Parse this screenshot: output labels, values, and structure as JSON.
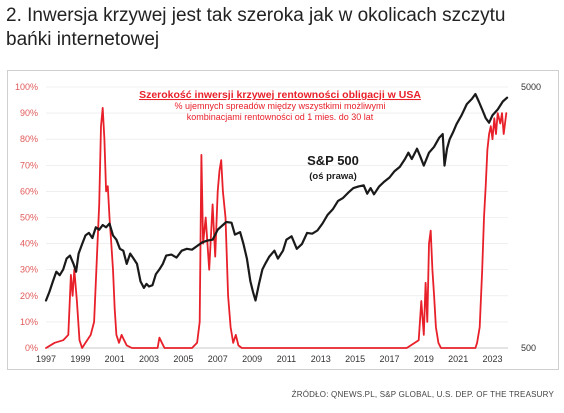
{
  "header": {
    "title_line1": "2. Inwersja krzywej jest tak szeroka jak w okolicach szczytu",
    "title_line2": "bańki internetowej"
  },
  "source": "ŹRÓDŁO: QNEWS.PL, S&P GLOBAL, U.S. DEP. OF THE TREASURY",
  "colors": {
    "red": "#e8202a",
    "black": "#1a1a1a",
    "left_ticks": "#e05a5a",
    "grid": "#e6e6e6"
  },
  "chart_data": {
    "type": "line",
    "title": "Szerokość inwersji krzywej rentowności obligacji w USA",
    "subtitle_line1": "% ujemnych spreadów między wszystkimi możliwymi",
    "subtitle_line2": "kombinacjami rentowności od 1 mies. do 30 lat",
    "annotation_title": "S&P 500",
    "annotation_sub": "(oś prawa)",
    "x_ticks": [
      "1997",
      "1999",
      "2001",
      "2003",
      "2005",
      "2007",
      "2009",
      "2011",
      "2013",
      "2015",
      "2017",
      "2019",
      "2021",
      "2023"
    ],
    "x_range": [
      1997,
      2023.9
    ],
    "y_left_ticks": [
      "0%",
      "10%",
      "20%",
      "30%",
      "40%",
      "50%",
      "60%",
      "70%",
      "80%",
      "90%",
      "100%"
    ],
    "y_left_range": [
      0,
      100
    ],
    "y_right_ticks": [
      "500",
      "5000"
    ],
    "y_right_range": [
      500,
      5000
    ],
    "y_right_scale": "log",
    "series": [
      {
        "color": "#e8202a",
        "axis": "left",
        "x": [
          1997.0,
          1997.5,
          1998.0,
          1998.3,
          1998.45,
          1998.55,
          1998.65,
          1998.8,
          1998.95,
          1999.1,
          1999.3,
          1999.6,
          1999.8,
          2000.0,
          2000.1,
          2000.2,
          2000.3,
          2000.4,
          2000.5,
          2000.6,
          2000.7,
          2000.8,
          2000.9,
          2001.0,
          2001.1,
          2001.25,
          2001.4,
          2001.55,
          2001.7,
          2002.0,
          2003.0,
          2003.5,
          2003.6,
          2003.75,
          2003.9,
          2004.5,
          2005.0,
          2005.5,
          2005.8,
          2005.95,
          2006.05,
          2006.15,
          2006.3,
          2006.5,
          2006.7,
          2006.85,
          2007.0,
          2007.1,
          2007.2,
          2007.3,
          2007.45,
          2007.6,
          2007.75,
          2007.9,
          2008.05,
          2008.2,
          2008.4,
          2009.0,
          2010.0,
          2012.0,
          2014.0,
          2016.0,
          2018.0,
          2018.7,
          2018.85,
          2019.0,
          2019.1,
          2019.2,
          2019.3,
          2019.4,
          2019.5,
          2019.6,
          2019.7,
          2019.85,
          2020.0,
          2020.3,
          2021.0,
          2021.5,
          2022.0,
          2022.1,
          2022.25,
          2022.4,
          2022.5,
          2022.6,
          2022.7,
          2022.8,
          2022.9,
          2023.0,
          2023.1,
          2023.2,
          2023.3,
          2023.45,
          2023.55,
          2023.65,
          2023.8
        ],
        "values": [
          0,
          2,
          3,
          5,
          28,
          20,
          30,
          18,
          3,
          0,
          2,
          5,
          10,
          40,
          55,
          85,
          92,
          80,
          60,
          62,
          50,
          40,
          30,
          15,
          5,
          2,
          5,
          3,
          1,
          0,
          0,
          0,
          4,
          2,
          0,
          0,
          0,
          0,
          2,
          10,
          74,
          40,
          50,
          30,
          55,
          35,
          60,
          68,
          72,
          60,
          50,
          20,
          8,
          2,
          5,
          1,
          0,
          0,
          0,
          0,
          0,
          0,
          0,
          3,
          18,
          5,
          25,
          10,
          40,
          45,
          30,
          20,
          8,
          2,
          0,
          0,
          0,
          0,
          0,
          2,
          8,
          30,
          50,
          62,
          76,
          82,
          85,
          80,
          88,
          82,
          90,
          86,
          90,
          82,
          90
        ]
      },
      {
        "name": "S&P 500",
        "color": "#1a1a1a",
        "axis": "right",
        "x": [
          1997.0,
          1997.2,
          1997.4,
          1997.6,
          1997.8,
          1998.0,
          1998.2,
          1998.4,
          1998.6,
          1998.75,
          1998.9,
          1999.1,
          1999.3,
          1999.5,
          1999.7,
          1999.9,
          2000.1,
          2000.3,
          2000.5,
          2000.7,
          2000.9,
          2001.1,
          2001.3,
          2001.5,
          2001.7,
          2001.9,
          2002.1,
          2002.3,
          2002.5,
          2002.7,
          2002.85,
          2003.0,
          2003.2,
          2003.4,
          2003.6,
          2003.8,
          2004.0,
          2004.3,
          2004.6,
          2004.9,
          2005.2,
          2005.5,
          2005.8,
          2006.1,
          2006.4,
          2006.7,
          2007.0,
          2007.3,
          2007.5,
          2007.8,
          2008.0,
          2008.3,
          2008.5,
          2008.7,
          2008.9,
          2009.05,
          2009.2,
          2009.4,
          2009.6,
          2009.8,
          2010.0,
          2010.3,
          2010.5,
          2010.8,
          2011.0,
          2011.3,
          2011.6,
          2011.9,
          2012.2,
          2012.5,
          2012.8,
          2013.1,
          2013.4,
          2013.7,
          2014.0,
          2014.3,
          2014.6,
          2014.9,
          2015.2,
          2015.5,
          2015.7,
          2015.9,
          2016.1,
          2016.4,
          2016.7,
          2017.0,
          2017.3,
          2017.6,
          2017.9,
          2018.1,
          2018.3,
          2018.6,
          2018.8,
          2019.0,
          2019.3,
          2019.6,
          2019.9,
          2020.1,
          2020.2,
          2020.35,
          2020.5,
          2020.7,
          2020.9,
          2021.2,
          2021.5,
          2021.8,
          2022.0,
          2022.2,
          2022.4,
          2022.6,
          2022.8,
          2023.0,
          2023.3,
          2023.6,
          2023.85
        ],
        "values": [
          760,
          820,
          900,
          980,
          950,
          1000,
          1100,
          1130,
          1050,
          980,
          1150,
          1250,
          1350,
          1380,
          1320,
          1450,
          1420,
          1480,
          1450,
          1500,
          1350,
          1300,
          1200,
          1180,
          1050,
          1150,
          1100,
          1050,
          900,
          850,
          880,
          860,
          870,
          960,
          1000,
          1050,
          1130,
          1140,
          1110,
          1180,
          1200,
          1190,
          1230,
          1270,
          1290,
          1300,
          1420,
          1480,
          1520,
          1510,
          1360,
          1390,
          1250,
          1100,
          900,
          820,
          760,
          880,
          1000,
          1060,
          1120,
          1180,
          1100,
          1180,
          1300,
          1340,
          1200,
          1250,
          1380,
          1370,
          1410,
          1500,
          1620,
          1700,
          1830,
          1880,
          1970,
          2050,
          2080,
          2100,
          1950,
          2050,
          1940,
          2080,
          2170,
          2250,
          2380,
          2470,
          2650,
          2800,
          2650,
          2900,
          2700,
          2500,
          2800,
          2950,
          3200,
          3300,
          2500,
          2900,
          3150,
          3350,
          3600,
          3900,
          4300,
          4500,
          4700,
          4400,
          4100,
          3800,
          3650,
          3900,
          4100,
          4400,
          4550
        ]
      }
    ]
  }
}
